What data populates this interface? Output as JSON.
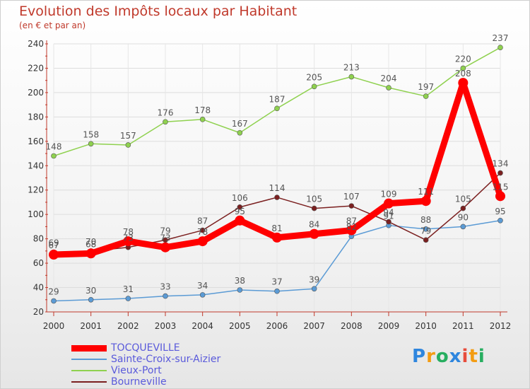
{
  "chart_data": {
    "type": "line",
    "title": "Evolution des Impôts locaux par Habitant",
    "subtitle": "(en € et par an)",
    "categories": [
      "2000",
      "2001",
      "2002",
      "2003",
      "2004",
      "2005",
      "2006",
      "2007",
      "2008",
      "2009",
      "2010",
      "2011",
      "2012"
    ],
    "ylim": [
      20,
      240
    ],
    "yticks": [
      20,
      40,
      60,
      80,
      100,
      120,
      140,
      160,
      180,
      200,
      220,
      240
    ],
    "grid": true,
    "legend_position": "bottom-left",
    "series": [
      {
        "name": "TOCQUEVILLE",
        "color": "#ff0000",
        "values": [
          67,
          68,
          78,
          73,
          78,
          95,
          81,
          84,
          87,
          109,
          111,
          208,
          115
        ],
        "labels": [
          "67",
          "68",
          "78",
          "73",
          "78",
          "95",
          "81",
          "84",
          "87",
          "109",
          "111",
          "208",
          "115"
        ]
      },
      {
        "name": "Sainte-Croix-sur-Aizier",
        "color": "#5b9bd5",
        "values": [
          29,
          30,
          31,
          33,
          34,
          38,
          37,
          39,
          82,
          91,
          88,
          90,
          95
        ],
        "labels": [
          "29",
          "30",
          "31",
          "33",
          "34",
          "38",
          "37",
          "39",
          "82",
          "91",
          "88",
          "90",
          "95"
        ]
      },
      {
        "name": "Vieux-Port",
        "color": "#8fd14f",
        "values": [
          148,
          158,
          157,
          176,
          178,
          167,
          187,
          205,
          213,
          204,
          197,
          220,
          237
        ],
        "labels": [
          "148",
          "158",
          "157",
          "176",
          "178",
          "167",
          "187",
          "205",
          "213",
          "204",
          "197",
          "220",
          "237"
        ]
      },
      {
        "name": "Bourneville",
        "color": "#7b2020",
        "values": [
          69,
          70,
          73,
          79,
          87,
          106,
          114,
          105,
          107,
          94,
          79,
          105,
          134
        ],
        "labels": [
          "69",
          "70",
          "73",
          "79",
          "87",
          "106",
          "114",
          "105",
          "107",
          "94",
          "79",
          "105",
          "134"
        ]
      }
    ]
  },
  "logo": {
    "letters": [
      "P",
      "r",
      "o",
      "x",
      "i",
      "t",
      "i"
    ],
    "colors": [
      "#2e86de",
      "#f39c12",
      "#27ae60",
      "#2e86de",
      "#e74c3c",
      "#f39c12",
      "#27ae60"
    ]
  }
}
